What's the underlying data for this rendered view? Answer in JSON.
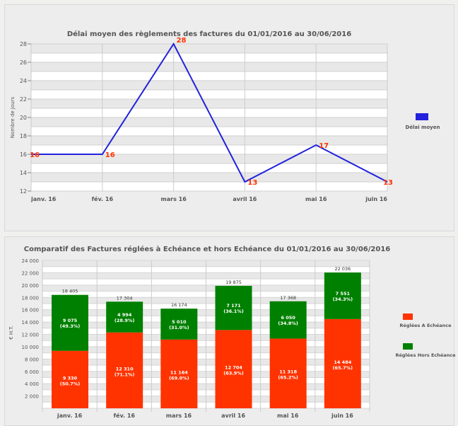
{
  "chart_data": [
    {
      "type": "line",
      "title": "Délai moyen des règlements des factures du 01/01/2016 au 30/06/2016",
      "ylabel": "Nombre de jours",
      "xlabel": "",
      "ylim": [
        12,
        28
      ],
      "yticks": [
        12,
        14,
        16,
        18,
        20,
        22,
        24,
        26,
        28
      ],
      "categories": [
        "janv. 16",
        "fév. 16",
        "mars 16",
        "avril 16",
        "mai 16",
        "juin 16"
      ],
      "series": [
        {
          "name": "Délai moyen",
          "values": [
            16,
            16,
            28,
            13,
            17,
            13
          ],
          "color": "#2222dd"
        }
      ],
      "label_color": "#ff3300",
      "legend": "right",
      "grid": true
    },
    {
      "type": "bar",
      "stacked": true,
      "title": "Comparatif des Factures réglées à Echéance et hors Echéance du 01/01/2016 au 30/06/2016",
      "ylabel": "€ H.T.",
      "ylim": [
        0,
        24000
      ],
      "yticks": [
        2000,
        4000,
        6000,
        8000,
        10000,
        12000,
        14000,
        16000,
        18000,
        20000,
        22000,
        24000
      ],
      "ytick_labels": [
        "2 000",
        "4 000",
        "6 000",
        "8 000",
        "10 000",
        "12 000",
        "14 000",
        "16 000",
        "18 000",
        "20 000",
        "22 000",
        "24 000"
      ],
      "categories": [
        "janv. 16",
        "fév. 16",
        "mars 16",
        "avril 16",
        "mai 16",
        "juin 16"
      ],
      "series": [
        {
          "name": "Réglées A Echéance",
          "color": "#ff3300",
          "values": [
            9330,
            12310,
            11164,
            12704,
            11318,
            14484
          ],
          "labels": [
            "9 330",
            "12 310",
            "11 164",
            "12 704",
            "11 318",
            "14 484"
          ],
          "pct": [
            "(50.7%)",
            "(71.1%)",
            "(69.0%)",
            "(63.9%)",
            "(65.2%)",
            "(65.7%)"
          ]
        },
        {
          "name": "Réglées Hors Echéance",
          "color": "#008000",
          "values": [
            9075,
            4994,
            5010,
            7171,
            6050,
            7551
          ],
          "labels": [
            "9 075",
            "4 994",
            "5 010",
            "7 171",
            "6 050",
            "7 551"
          ],
          "pct": [
            "(49.3%)",
            "(28.9%)",
            "(31.0%)",
            "(36.1%)",
            "(34.8%)",
            "(34.3%)"
          ]
        }
      ],
      "totals": [
        "18 405",
        "17 304",
        "16 174",
        "19 875",
        "17 368",
        "22 036"
      ],
      "legend": "right",
      "grid": true
    }
  ]
}
